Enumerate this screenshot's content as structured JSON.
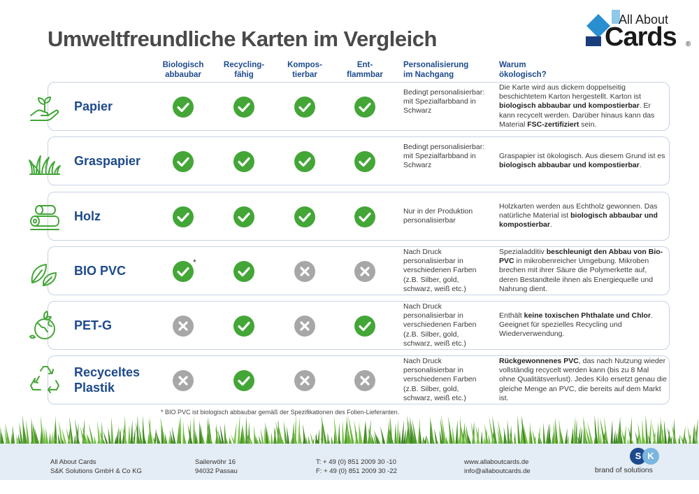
{
  "title": "Umweltfreundliche Karten im Vergleich",
  "logo": {
    "about": "All About",
    "cards": "Cards",
    "reg": "®"
  },
  "headers": {
    "bio": "Biologisch\nabbaubar",
    "recycling": "Recycling-\nfähig",
    "kompost": "Kompos-\ntierbar",
    "entflammbar": "Ent-\nflammbar",
    "personalisierung": "Personalisierung\nim Nachgang",
    "warum": "Warum\nökologisch?"
  },
  "rows": [
    {
      "name": "Papier",
      "icon": "hand-sprout-icon",
      "marks": [
        "yes",
        "yes",
        "yes",
        "yes"
      ],
      "pers": "Bedingt personalisierbar: mit Spezialfarbband in Schwarz",
      "why": [
        {
          "t": "Die Karte wird aus dickem doppelseitig beschichtetem Karton hergestellt. Karton ist ",
          "b": false
        },
        {
          "t": "biologisch abbaubar und kompostierbar",
          "b": true
        },
        {
          "t": ". Er kann recycelt werden. Darüber hinaus kann das Material ",
          "b": false
        },
        {
          "t": "FSC-zertifiziert",
          "b": true
        },
        {
          "t": " sein.",
          "b": false
        }
      ]
    },
    {
      "name": "Graspapier",
      "icon": "grass-icon",
      "marks": [
        "yes",
        "yes",
        "yes",
        "yes"
      ],
      "pers": "Bedingt personalisierbar: mit Spezialfarbband in Schwarz",
      "why": [
        {
          "t": "Graspapier ist ökologisch. Aus diesem Grund ist es ",
          "b": false
        },
        {
          "t": "biologisch abbaubar und kompostierbar",
          "b": true
        },
        {
          "t": ".",
          "b": false
        }
      ]
    },
    {
      "name": "Holz",
      "icon": "logs-icon",
      "marks": [
        "yes",
        "yes",
        "yes",
        "yes"
      ],
      "pers": "Nur in der Produktion personalisierbar",
      "why": [
        {
          "t": "Holzkarten werden aus Echtholz gewonnen. Das natürliche Material ist ",
          "b": false
        },
        {
          "t": "biologisch abbaubar und kompostierbar",
          "b": true
        },
        {
          "t": ".",
          "b": false
        }
      ]
    },
    {
      "name": "BIO PVC",
      "icon": "leaves-icon",
      "marks": [
        "yes",
        "yes",
        "no",
        "no"
      ],
      "star": "*",
      "pers": "Nach Druck personalisierbar in verschiedenen Farben (z.B. Silber, gold, schwarz, weiß etc.)",
      "why": [
        {
          "t": "Spezialadditiv ",
          "b": false
        },
        {
          "t": "beschleunigt den Abbau von Bio-PVC",
          "b": true
        },
        {
          "t": " in mikrobenreicher Umgebung. Mikroben brechen mit ihrer Säure die Polymerkette auf, deren Bestandteile ihnen als Energiequelle und Nahrung dient.",
          "b": false
        }
      ]
    },
    {
      "name": "PET-G",
      "icon": "globe-leaves-icon",
      "marks": [
        "no",
        "yes",
        "no",
        "yes"
      ],
      "pers": "Nach Druck personalisierbar in verschiedenen Farben (z.B. Silber, gold, schwarz, weiß etc.)",
      "why": [
        {
          "t": "Enthält ",
          "b": false
        },
        {
          "t": "keine toxischen Phthalate und Chlor",
          "b": true
        },
        {
          "t": ". Geeignet für spezielles Recycling und Wiederverwendung.",
          "b": false
        }
      ]
    },
    {
      "name": "Recyceltes Plastik",
      "icon": "recycle-icon",
      "marks": [
        "no",
        "yes",
        "no",
        "no"
      ],
      "pers": "Nach Druck personalisierbar in verschiedenen Farben (z.B. Silber, gold, schwarz, weiß etc.)",
      "why": [
        {
          "t": "Rückgewonnenes PVC",
          "b": true
        },
        {
          "t": ", das nach Nutzung wieder vollständig recycelt werden kann (bis zu 8 Mal ohne Qualitätsverlust). Jedes Kilo ersetzt genau die gleiche Menge an PVC, die bereits auf dem Markt ist.",
          "b": false
        }
      ]
    }
  ],
  "footnote": "* BIO PVC ist biologisch abbaubar gemäß der Spezifikationen des Folien-Lieferanten.",
  "footer": {
    "company": "All About Cards\nS&K Solutions GmbH & Co KG",
    "address": "Sailerwöhr 16\n94032 Passau",
    "phone": "T: + 49 (0) 851 2009 30 -10\nF: + 49 (0) 851 2009 30 -22",
    "web": "www.allaboutcards.de\ninfo@allaboutcards.de",
    "brand": "brand of  solutions",
    "sk_s": "S",
    "sk_k": "K"
  },
  "colors": {
    "accent": "#1d4a8c",
    "check": "#43a637",
    "cross": "#a7a7a7",
    "icon": "#43a637"
  }
}
